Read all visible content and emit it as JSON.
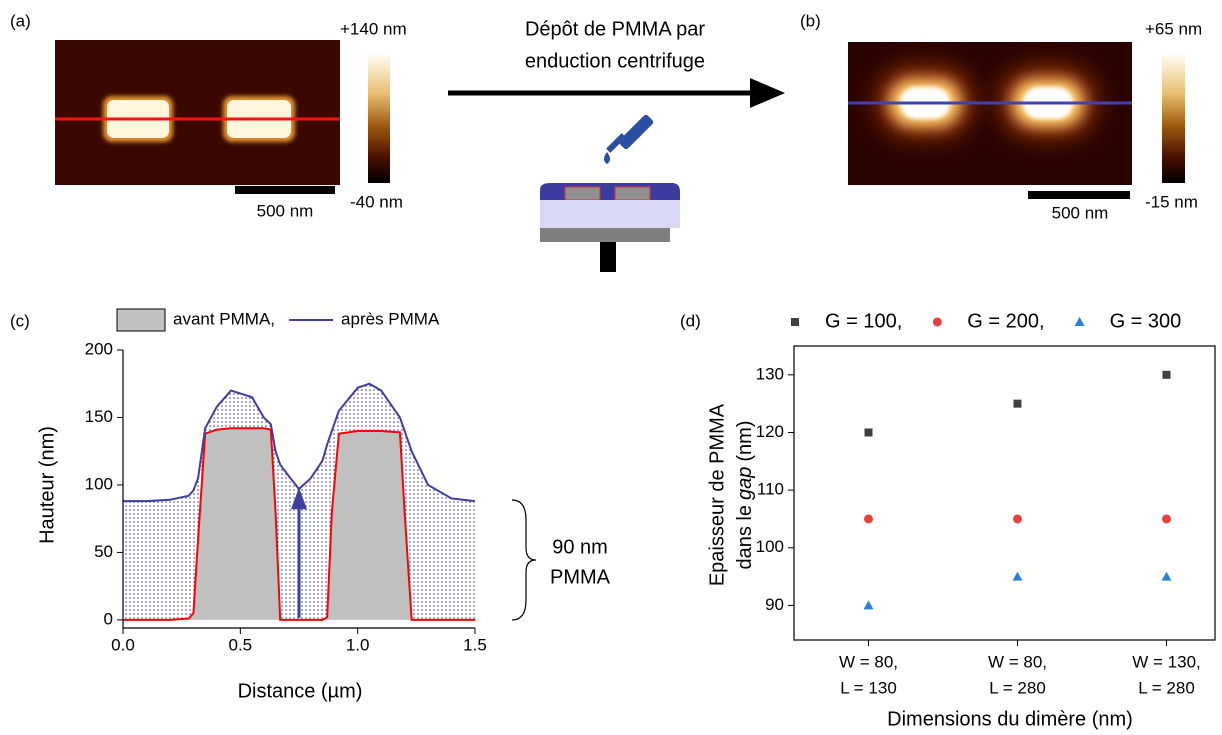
{
  "panel_labels": [
    "(a)",
    "(b)",
    "(c)",
    "(d)"
  ],
  "afm_a": {
    "scale_max": "+140 nm",
    "scale_min": "-40 nm",
    "scale_bar": "500 nm"
  },
  "afm_b": {
    "scale_max": "+65 nm",
    "scale_min": "-15 nm",
    "scale_bar": "500 nm"
  },
  "process": {
    "lines": [
      "Dépôt de PMMA par",
      "enduction centrifuge"
    ]
  },
  "chart_data": [
    {
      "type": "line",
      "x_label": "Distance (µm)",
      "y_label": "Hauteur (nm)",
      "x": [
        0,
        0.1,
        0.2,
        0.28,
        0.3,
        0.32,
        0.35,
        0.4,
        0.46,
        0.55,
        0.6,
        0.63,
        0.65,
        0.67,
        0.7,
        0.75,
        0.8,
        0.85,
        0.87,
        0.89,
        0.92,
        1.0,
        1.05,
        1.1,
        1.18,
        1.2,
        1.23,
        1.3,
        1.4,
        1.5
      ],
      "series": [
        {
          "name": "avant PMMA,",
          "style": "area",
          "color": "#c0c0c0",
          "line_color": "#ff0000",
          "values": [
            0,
            0,
            0,
            1,
            5,
            60,
            138,
            141,
            142,
            142,
            142,
            141,
            80,
            0,
            0,
            0,
            0,
            0,
            2,
            80,
            138,
            140,
            140,
            140,
            139,
            80,
            0,
            0,
            0,
            0
          ]
        },
        {
          "name": "après PMMA",
          "style": "line",
          "color": "#3f3f9f",
          "values": [
            88,
            88,
            89,
            92,
            96,
            105,
            142,
            158,
            170,
            165,
            150,
            145,
            125,
            115,
            108,
            97,
            105,
            118,
            130,
            140,
            155,
            172,
            175,
            170,
            150,
            140,
            125,
            100,
            90,
            88
          ]
        }
      ],
      "xlim": [
        0,
        1.5
      ],
      "ylim": [
        -6,
        200
      ],
      "xticks": [
        {
          "value": 0,
          "label": "0.0"
        },
        0.5,
        {
          "value": 1,
          "label": "1.0"
        },
        1.5
      ],
      "yticks": [
        0,
        50,
        100,
        150,
        200
      ],
      "annotations": [
        "90 nm",
        "PMMA"
      ]
    },
    {
      "type": "scatter",
      "x_label": "Dimensions du dimère (nm)",
      "y_label": {
        "line1": "Epaisseur de PMMA",
        "line2": [
          "dans le",
          "gap",
          "(nm)"
        ]
      },
      "categories": [
        [
          "W = 80,",
          "L = 130"
        ],
        [
          "W = 80,",
          "L = 280"
        ],
        [
          "W = 130,",
          "L = 280"
        ]
      ],
      "series": [
        {
          "name": "G = 100,",
          "color": "#404040",
          "marker": "square",
          "values": [
            120,
            125,
            130
          ]
        },
        {
          "name": "G = 200,",
          "color": "#e84040",
          "marker": "circle",
          "values": [
            105,
            105,
            105
          ]
        },
        {
          "name": "G = 300",
          "color": "#2f7fd8",
          "marker": "triangle",
          "values": [
            90,
            95,
            95
          ]
        }
      ],
      "ylim": [
        84,
        135
      ],
      "yticks": [
        90,
        100,
        110,
        120,
        130
      ]
    }
  ]
}
